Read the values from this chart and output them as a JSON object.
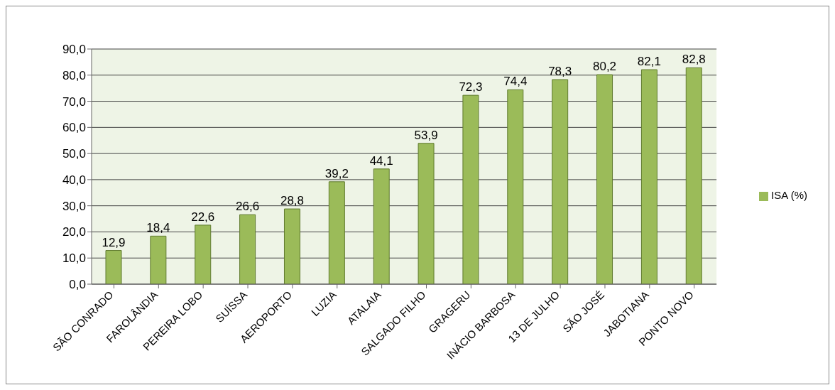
{
  "chart_data": {
    "type": "bar",
    "categories": [
      "SÃO CONRADO",
      "FAROLÂNDIA",
      "PEREIRA LOBO",
      "SUÍSSA",
      "AEROPORTO",
      "LUZIA",
      "ATALAIA",
      "SALGADO FILHO",
      "GRAGERU",
      "INÁCIO BARBOSA",
      "13 DE JULHO",
      "SÃO JOSÉ",
      "JABOTIANA",
      "PONTO NOVO"
    ],
    "series": [
      {
        "name": "ISA (%)",
        "color": "#9bbb59",
        "values": [
          12.9,
          18.4,
          22.6,
          26.6,
          28.8,
          39.2,
          44.1,
          53.9,
          72.3,
          74.4,
          78.3,
          80.2,
          82.1,
          82.8
        ],
        "value_labels": [
          "12,9",
          "18,4",
          "22,6",
          "26,6",
          "28,8",
          "39,2",
          "44,1",
          "53,9",
          "72,3",
          "74,4",
          "78,3",
          "80,2",
          "82,1",
          "82,8"
        ]
      }
    ],
    "ylim": [
      0,
      90
    ],
    "yticks": [
      {
        "value": 0,
        "label": "0,0"
      },
      {
        "value": 10,
        "label": "10,0"
      },
      {
        "value": 20,
        "label": "20,0"
      },
      {
        "value": 30,
        "label": "30,0"
      },
      {
        "value": 40,
        "label": "40,0"
      },
      {
        "value": 50,
        "label": "50,0"
      },
      {
        "value": 60,
        "label": "60,0"
      },
      {
        "value": 70,
        "label": "70,0"
      },
      {
        "value": 80,
        "label": "80,0"
      },
      {
        "value": 90,
        "label": "90,0"
      }
    ],
    "grid": "y",
    "legend": "right"
  }
}
